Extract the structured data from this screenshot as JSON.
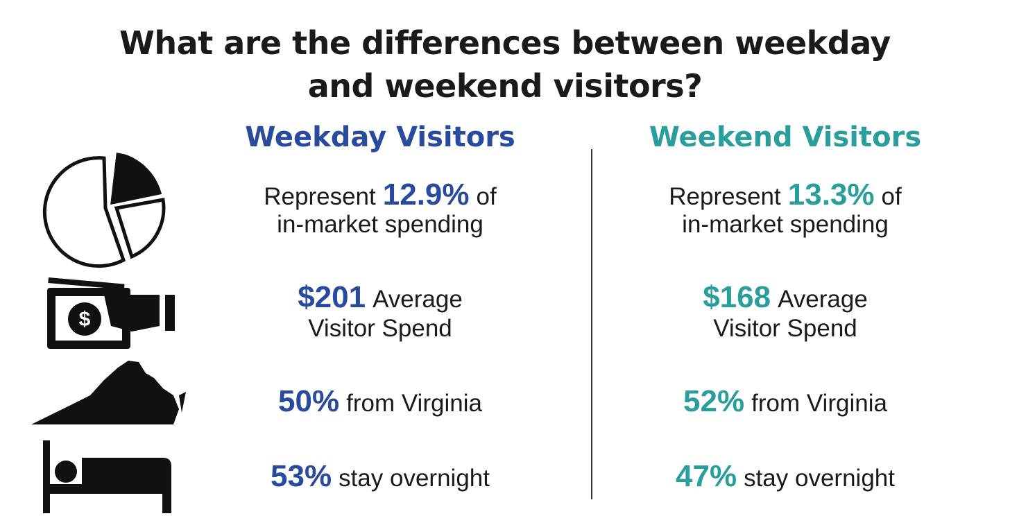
{
  "title_lines": [
    "What are the differences between weekday",
    "and weekend visitors?"
  ],
  "columns": [
    {
      "heading": "Weekday Visitors",
      "color": "#2a4a9e",
      "rows": [
        [
          [
            {
              "text": "Represent"
            },
            {
              "text": "12.9%",
              "emphasis": true
            },
            {
              "text": "of"
            }
          ],
          [
            {
              "text": "in-market spending"
            }
          ]
        ],
        [
          [
            {
              "text": "$201",
              "emphasis": true
            },
            {
              "text": "Average"
            }
          ],
          [
            {
              "text": "Visitor Spend"
            }
          ]
        ],
        [
          [
            {
              "text": "50%",
              "emphasis": true
            },
            {
              "text": "from Virginia"
            }
          ]
        ],
        [
          [
            {
              "text": "53%",
              "emphasis": true
            },
            {
              "text": "stay overnight"
            }
          ]
        ]
      ]
    },
    {
      "heading": "Weekend Visitors",
      "color": "#2a9e9a",
      "rows": [
        [
          [
            {
              "text": "Represent"
            },
            {
              "text": "13.3%",
              "emphasis": true
            },
            {
              "text": "of"
            }
          ],
          [
            {
              "text": "in-market spending"
            }
          ]
        ],
        [
          [
            {
              "text": "$168",
              "emphasis": true
            },
            {
              "text": "Average"
            }
          ],
          [
            {
              "text": "Visitor Spend"
            }
          ]
        ],
        [
          [
            {
              "text": "52%",
              "emphasis": true
            },
            {
              "text": "from Virginia"
            }
          ]
        ],
        [
          [
            {
              "text": "47%",
              "emphasis": true
            },
            {
              "text": "stay overnight"
            }
          ]
        ]
      ]
    }
  ]
}
